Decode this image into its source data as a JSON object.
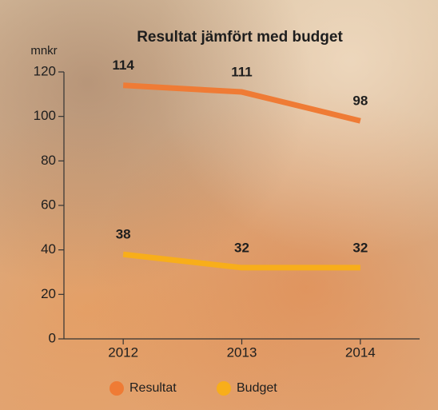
{
  "chart_data": {
    "type": "line",
    "title": "Resultat jämfört med budget",
    "y_label": "mnkr",
    "categories": [
      "2012",
      "2013",
      "2014"
    ],
    "series": [
      {
        "name": "Resultat",
        "color": "#ef7b35",
        "values": [
          114,
          111,
          98
        ]
      },
      {
        "name": "Budget",
        "color": "#f8ae1a",
        "values": [
          38,
          32,
          32
        ]
      }
    ],
    "ylim": [
      0,
      120
    ],
    "yticks": [
      0,
      20,
      40,
      60,
      80,
      100,
      120
    ],
    "grid": false
  }
}
